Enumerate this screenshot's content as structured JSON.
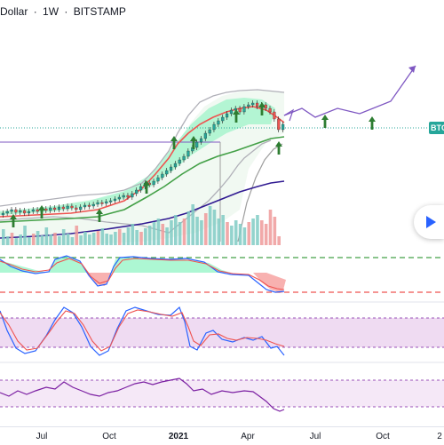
{
  "header": {
    "title_parts": [
      "Dollar",
      "1W",
      "BITSTAMP"
    ],
    "separator": "·"
  },
  "price_tag": {
    "label": "BTC",
    "color": "#26a69a"
  },
  "x_axis": {
    "labels": [
      "Jul",
      "Oct",
      "2021",
      "Apr",
      "Jul",
      "Oct",
      "2"
    ]
  },
  "colors": {
    "up_candle": "#26a69a",
    "down_candle": "#ef5350",
    "ma_fast": "#ef5350",
    "ma_mid": "#43a047",
    "ma_slow": "#311b92",
    "band": "#b0b0b8",
    "projection": "#7e57c2",
    "signal_arrow": "#2e7d32",
    "stoch_k": "#2962ff",
    "stoch_d": "#ef5350",
    "rsi": "#7b1fa2"
  },
  "icons": {
    "play": "play-icon",
    "arrow": "up-arrow-icon"
  }
}
